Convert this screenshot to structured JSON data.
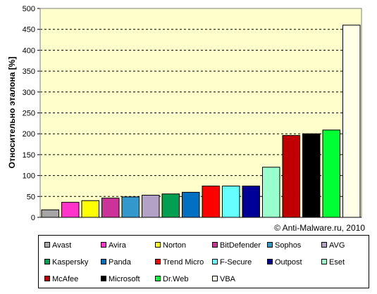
{
  "chart_data": {
    "type": "bar",
    "ylabel": "Относительно эталона [%]",
    "ylim": [
      0,
      500
    ],
    "yticks": [
      0,
      50,
      100,
      150,
      200,
      250,
      300,
      350,
      400,
      450,
      500
    ],
    "grid": true,
    "plot_background": "#ffffcc",
    "legend_placement": "bottom",
    "credit": "© Anti-Malware.ru,  2010",
    "categories": [
      "Avast",
      "Avira",
      "Norton",
      "BitDefender",
      "Sophos",
      "AVG",
      "Kaspersky",
      "Panda",
      "Trend Micro",
      "F-Secure",
      "Outpost",
      "Eset",
      "McAfee",
      "Microsoft",
      "Dr.Web",
      "VBA"
    ],
    "values": [
      18,
      36,
      40,
      46,
      49,
      53,
      56,
      60,
      75,
      75,
      75,
      120,
      196,
      200,
      209,
      460
    ],
    "colors": [
      "#a6a6a6",
      "#ff33cc",
      "#ffff00",
      "#cc3399",
      "#3399cc",
      "#b3a2c7",
      "#00a050",
      "#0070c0",
      "#ff0000",
      "#66ffff",
      "#000099",
      "#99ffcc",
      "#c00000",
      "#000000",
      "#00ff33",
      "#ffffe8"
    ]
  }
}
